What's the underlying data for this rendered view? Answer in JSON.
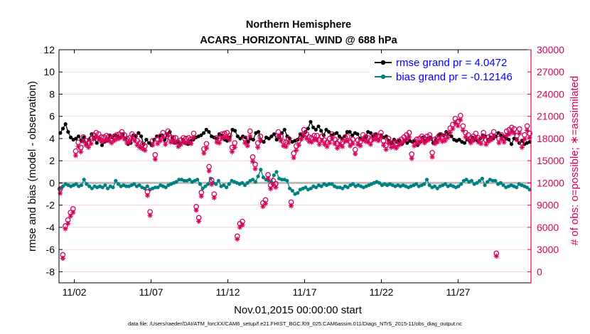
{
  "chart_data": {
    "type": "line",
    "title": "Northern Hemisphere",
    "subtitle": "ACARS_HORIZONTAL_WIND @ 688 hPa",
    "xlabel": "Nov.01,2015 00:00:00 start",
    "ylabel": "rmse and bias (model - observation)",
    "y2label": "# of obs: o=possible; ∗=assimilated",
    "xlim": [
      0,
      30.75
    ],
    "ylim": [
      -9,
      12
    ],
    "y2lim": [
      -1500,
      30000
    ],
    "x_tick_positions": [
      1,
      6,
      11,
      16,
      21,
      26
    ],
    "x_tick_labels": [
      "11/02",
      "11/07",
      "11/12",
      "11/17",
      "11/22",
      "11/27"
    ],
    "y_ticks": [
      12,
      10,
      8,
      6,
      4,
      2,
      0,
      -2,
      -4,
      -6,
      -8
    ],
    "y2_ticks": [
      30000,
      27000,
      24000,
      21000,
      18000,
      15000,
      12000,
      9000,
      6000,
      3000,
      0
    ],
    "zero_line": 0,
    "grid": "horizontal",
    "legend": {
      "location": "top-right",
      "entries": [
        "rmse grand pr = 4.0472",
        "bias grand pr = -0.12146"
      ]
    },
    "footnote": "data file: /Users/raeder/DAI/ATM_forcXX/CAM6_setup/f.e21.FHIST_BGC.f09_025.CAM6assim.011/Diags_NTrS_2015-11/obs_diag_output.nc",
    "series": [
      {
        "name": "rmse",
        "color": "#000000",
        "values": [
          4.5,
          4.9,
          5.3,
          4.6,
          4.1,
          3.9,
          4.0,
          4.2,
          3.8,
          4.1,
          3.5,
          3.9,
          4.4,
          4.1,
          3.6,
          4.0,
          3.4,
          3.7,
          3.8,
          4.3,
          4.1,
          4.3,
          4.2,
          4.1,
          4.4,
          4.0,
          3.5,
          3.6,
          4.3,
          4.2,
          4.5,
          4.2,
          3.5,
          3.9,
          3.6,
          3.4,
          3.9,
          4.2,
          4.2,
          4.3,
          3.9,
          4.4,
          4.6,
          4.1,
          3.6,
          3.7,
          3.5,
          3.9,
          3.6,
          3.5,
          3.8,
          3.9,
          4.1,
          4.2,
          4.3,
          4.5,
          4.8,
          4.6,
          4.2,
          4.1,
          4.0,
          4.4,
          4.3,
          3.9,
          3.8,
          4.1,
          4.8,
          4.7,
          4.2,
          4.0,
          4.2,
          4.1,
          3.7,
          4.0,
          3.9,
          4.5,
          4.6,
          3.8,
          3.7,
          4.1,
          4.0,
          4.2,
          4.4,
          3.9,
          4.1,
          4.5,
          4.8,
          4.2,
          4.0,
          3.7,
          3.8,
          3.9,
          4.4,
          4.2,
          4.6,
          4.9,
          5.5,
          5.0,
          4.8,
          5.1,
          4.7,
          4.3,
          4.8,
          4.6,
          4.3,
          4.4,
          4.5,
          4.2,
          4.0,
          4.2,
          4.6,
          4.6,
          4.3,
          4.5,
          4.4,
          4.0,
          3.9,
          4.1,
          4.6,
          4.5,
          4.2,
          4.4,
          3.9,
          4.3,
          4.1,
          4.2,
          3.8,
          3.6,
          3.9,
          3.7,
          3.8,
          3.5,
          3.8,
          3.6,
          3.8,
          3.7,
          3.8,
          3.4,
          3.7,
          4.1,
          3.8,
          4.0,
          4.1,
          3.6,
          3.9,
          4.3,
          4.4,
          4.3,
          4.6,
          4.4,
          4.2,
          3.9,
          3.8,
          3.9,
          3.7,
          3.6,
          3.9,
          3.8,
          4.1,
          3.9,
          3.8,
          4.0,
          4.3,
          4.2,
          3.9,
          4.1,
          4.0,
          4.2,
          4.5,
          4.3,
          4.2,
          4.0,
          3.9,
          3.5,
          4.0,
          3.9,
          3.6,
          3.8,
          3.5,
          3.6,
          3.7
        ]
      },
      {
        "name": "bias",
        "color": "#008080",
        "values": [
          -0.5,
          -0.3,
          -0.1,
          -0.2,
          -0.3,
          -0.2,
          -0.1,
          -0.3,
          -0.2,
          0.3,
          -0.1,
          -0.3,
          -0.5,
          -0.3,
          -0.4,
          -0.3,
          -0.4,
          -0.2,
          -0.5,
          -0.3,
          -0.4,
          0.2,
          -0.1,
          -0.3,
          -0.2,
          -0.3,
          -0.3,
          -0.2,
          -0.1,
          -0.3,
          -0.2,
          -0.4,
          -0.5,
          -0.3,
          -0.6,
          -0.5,
          -0.4,
          -0.4,
          -0.2,
          -0.3,
          -0.4,
          -0.2,
          -0.1,
          0.0,
          0.1,
          0.3,
          0.3,
          0.2,
          0.2,
          0.3,
          0.1,
          0.2,
          0.3,
          -0.1,
          -0.5,
          -0.3,
          -0.1,
          0.4,
          0.0,
          -0.1,
          0.2,
          -0.3,
          -0.2,
          -0.4,
          -0.1,
          0.2,
          0.1,
          0.0,
          -0.1,
          0.0,
          -0.2,
          0.0,
          0.2,
          0.3,
          0.1,
          0.6,
          1.2,
          0.5,
          0.3,
          0.2,
          0.1,
          0.7,
          1.0,
          0.4,
          0.3,
          0.3,
          0.2,
          -0.5,
          -0.7,
          -1.0,
          -0.9,
          -0.6,
          -0.5,
          -0.4,
          -0.6,
          -0.5,
          -0.3,
          -0.4,
          -0.2,
          -0.3,
          -0.1,
          -0.2,
          -0.1,
          -0.1,
          -0.3,
          -0.4,
          -0.4,
          -0.5,
          -0.3,
          -0.4,
          -0.2,
          -0.1,
          -0.3,
          -0.2,
          -0.3,
          -0.4,
          -0.3,
          -0.2,
          -0.1,
          0.0,
          0.1,
          0.0,
          -0.2,
          -0.1,
          -0.2,
          -0.1,
          -0.2,
          -0.3,
          -0.2,
          -0.3,
          -0.2,
          -0.3,
          -0.4,
          -0.3,
          -0.2,
          -0.1,
          -0.3,
          -0.2,
          -0.1,
          0.3,
          -0.2,
          -0.4,
          -0.3,
          -0.5,
          -0.3,
          -0.2,
          -0.1,
          -0.3,
          -0.2,
          -0.3,
          -0.4,
          -0.3,
          -0.1,
          0.2,
          0.3,
          0.1,
          0.2,
          -0.1,
          0.0,
          0.2,
          0.4,
          -0.2,
          0.1,
          0.3,
          0.2,
          0.2,
          -0.1,
          0.0,
          -0.2,
          -0.4,
          -0.3,
          -0.2,
          -0.3,
          -0.4,
          -0.1,
          -0.2,
          -0.3,
          -0.4,
          -0.6
        ]
      },
      {
        "name": "possible",
        "color": "#D6005A",
        "values": [
          11100,
          2200,
          6100,
          6900,
          7900,
          8400,
          16200,
          17400,
          16700,
          18100,
          17600,
          17300,
          17900,
          18400,
          18700,
          18500,
          18100,
          18100,
          18300,
          18200,
          17900,
          18200,
          18400,
          18500,
          18800,
          18400,
          17900,
          18000,
          18500,
          18200,
          17600,
          17300,
          17100,
          16900,
          10700,
          8000,
          17600,
          15700,
          17800,
          18200,
          18700,
          17700,
          18900,
          18000,
          18000,
          18000,
          17400,
          17700,
          18000,
          17900,
          18000,
          17800,
          18600,
          8700,
          7200,
          10600,
          16500,
          17200,
          14100,
          12300,
          10400,
          18000,
          17900,
          18500,
          18600,
          18700,
          18300,
          16700,
          17300,
          4700,
          6400,
          6700,
          17900,
          17500,
          18900,
          15400,
          14400,
          17300,
          18200,
          9200,
          9600,
          13000,
          11600,
          12200,
          11800,
          18800,
          18200,
          17500,
          17400,
          17900,
          9300,
          15900,
          16900,
          17600,
          18400,
          19100,
          18500,
          18100,
          18000,
          18300,
          18300,
          17700,
          18200,
          17700,
          17400,
          17900,
          18500,
          17800,
          17200,
          17600,
          17400,
          18100,
          18200,
          17500,
          17800,
          16400,
          17700,
          17500,
          18400,
          18100,
          18000,
          17700,
          18300,
          18400,
          18200,
          18700,
          17600,
          17000,
          17900,
          17300,
          17400,
          17200,
          17600,
          17800,
          18100,
          18400,
          18700,
          15800,
          17500,
          17800,
          17900,
          18200,
          17900,
          18200,
          18400,
          16000,
          17800,
          18000,
          18400,
          18100,
          18200,
          18600,
          19300,
          19800,
          20600,
          20200,
          21000,
          19600,
          18700,
          18400,
          17900,
          18200,
          18600,
          18000,
          17800,
          18700,
          17700,
          18100,
          18300,
          18800,
          2400,
          17900,
          18400,
          18000,
          18900,
          19100,
          19400,
          19200,
          18300,
          19200,
          17300,
          18400,
          19600,
          18600
        ]
      },
      {
        "name": "assimilated",
        "color": "#D6005A",
        "values": [
          10800,
          2000,
          6000,
          6700,
          7700,
          8200,
          15900,
          17100,
          16400,
          17800,
          17300,
          17000,
          17500,
          18100,
          18400,
          18200,
          17800,
          17800,
          18000,
          17900,
          17600,
          17900,
          18100,
          18200,
          18500,
          18100,
          17600,
          17700,
          18200,
          17900,
          17300,
          17000,
          16800,
          16600,
          10500,
          7800,
          17300,
          15400,
          17500,
          17900,
          18400,
          17400,
          18600,
          17700,
          17700,
          17700,
          17100,
          17400,
          17700,
          17600,
          17700,
          17500,
          18300,
          8500,
          7000,
          10400,
          16200,
          16900,
          13800,
          12000,
          10200,
          17700,
          17600,
          18200,
          18300,
          18400,
          18000,
          16400,
          17000,
          4600,
          6200,
          6500,
          17600,
          17200,
          18500,
          15100,
          14100,
          17000,
          17900,
          9000,
          9400,
          12800,
          11400,
          12000,
          11600,
          18500,
          17900,
          17200,
          17100,
          17600,
          9100,
          15600,
          16600,
          17300,
          18100,
          18800,
          18200,
          17800,
          17700,
          18000,
          18000,
          17400,
          17900,
          17400,
          17100,
          17600,
          18200,
          17500,
          16900,
          17300,
          17100,
          17800,
          17900,
          17200,
          17500,
          16100,
          17400,
          17200,
          18100,
          17800,
          17700,
          17400,
          18000,
          18100,
          17900,
          18400,
          17300,
          16700,
          17600,
          17000,
          17100,
          16900,
          17300,
          17500,
          17800,
          18100,
          18400,
          15500,
          17200,
          17500,
          17600,
          17900,
          17600,
          17900,
          18100,
          15700,
          17500,
          17700,
          18100,
          17800,
          17900,
          18300,
          19000,
          19500,
          20300,
          19900,
          20700,
          19300,
          18400,
          18100,
          17600,
          17900,
          18300,
          17700,
          17500,
          18400,
          17400,
          17800,
          18000,
          18500,
          2300,
          17600,
          18100,
          17700,
          18600,
          18800,
          19100,
          18900,
          18000,
          18900,
          17000,
          18100,
          19300,
          18300
        ]
      }
    ]
  }
}
